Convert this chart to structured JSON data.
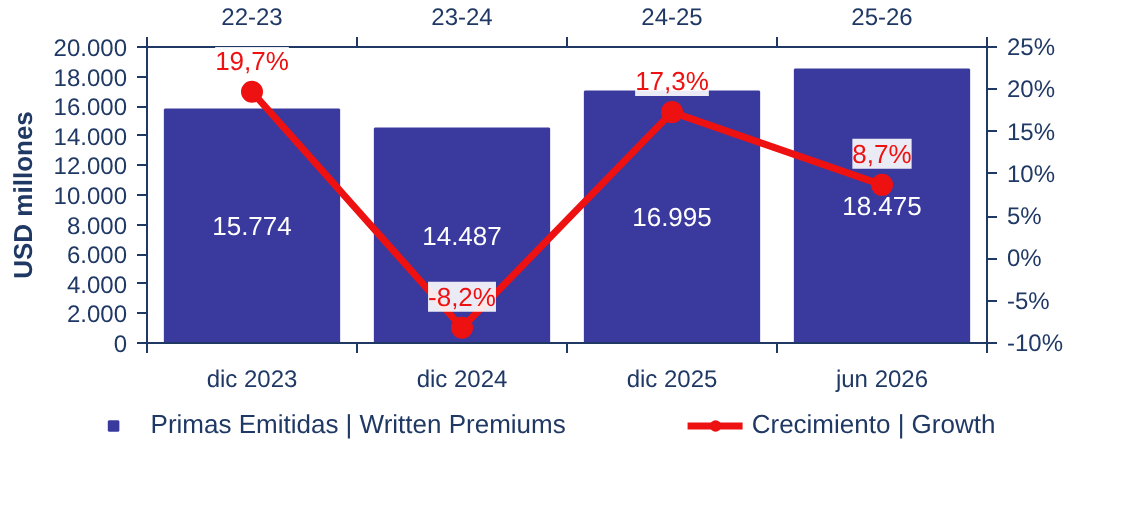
{
  "chart_data": {
    "type": "bar",
    "ylabel": "USD millones",
    "categories": [
      "dic 2023",
      "dic 2024",
      "dic 2025",
      "jun 2026"
    ],
    "series": [
      {
        "name": "Primas Emitidas | Written Premiums",
        "color": "#3a3a9e",
        "values": [
          15774,
          14487,
          16995,
          18475
        ],
        "value_labels": [
          "15.774",
          "14.487",
          "16.995",
          "18.475"
        ]
      },
      {
        "name": "Crecimiento | Growth",
        "type": "line",
        "axis": "y2",
        "color": "#ee1111",
        "marker": "circle",
        "values": [
          19.7,
          -8.2,
          17.3,
          8.7
        ],
        "value_labels": [
          "19,7%",
          "-8,2%",
          "17,3%",
          "8,7%"
        ]
      }
    ],
    "ylim": [
      0,
      20000
    ],
    "yticks": [
      {
        "value": 0,
        "label": "0"
      },
      {
        "value": 2000,
        "label": "2.000"
      },
      {
        "value": 4000,
        "label": "4.000"
      },
      {
        "value": 6000,
        "label": "6.000"
      },
      {
        "value": 8000,
        "label": "8.000"
      },
      {
        "value": 10000,
        "label": "10.000"
      },
      {
        "value": 12000,
        "label": "12.000"
      },
      {
        "value": 14000,
        "label": "14.000"
      },
      {
        "value": 16000,
        "label": "16.000"
      },
      {
        "value": 18000,
        "label": "18.000"
      },
      {
        "value": 20000,
        "label": "20.000"
      }
    ],
    "y2lim": [
      -10,
      25
    ],
    "y2ticks": [
      {
        "value": -10,
        "label": "-10%"
      },
      {
        "value": -5,
        "label": "-5%"
      },
      {
        "value": 0,
        "label": "0%"
      },
      {
        "value": 5,
        "label": "5%"
      },
      {
        "value": 10,
        "label": "10%"
      },
      {
        "value": 15,
        "label": "15%"
      },
      {
        "value": 20,
        "label": "20%"
      },
      {
        "value": 25,
        "label": "25%"
      }
    ],
    "annotations": [
      "22-23",
      "23-24",
      "24-25",
      "25-26"
    ],
    "legend": "bottom",
    "grid": false
  }
}
